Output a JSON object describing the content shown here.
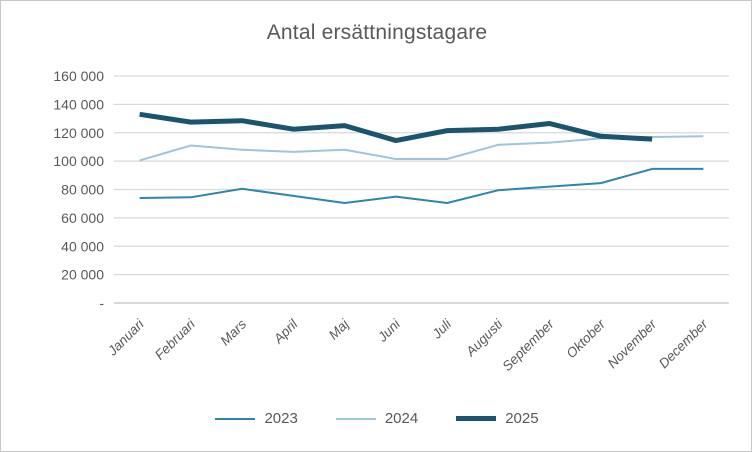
{
  "chart_data": {
    "type": "line",
    "title": "Antal ersättningstagare",
    "categories": [
      "Januari",
      "Februari",
      "Mars",
      "April",
      "Maj",
      "Juni",
      "Juli",
      "Augusti",
      "September",
      "Oktober",
      "November",
      "December"
    ],
    "series": [
      {
        "name": "2023",
        "color": "#2E86AE",
        "width": 2,
        "values": [
          74000,
          74500,
          80500,
          75500,
          70500,
          75000,
          70500,
          79500,
          82000,
          84500,
          94500,
          94500
        ]
      },
      {
        "name": "2024",
        "color": "#9DC5DC",
        "width": 2,
        "values": [
          100500,
          111000,
          108000,
          106500,
          108000,
          101500,
          101500,
          111500,
          113000,
          116000,
          117000,
          117500
        ]
      },
      {
        "name": "2025",
        "color": "#1B546E",
        "width": 5,
        "values": [
          133000,
          127500,
          128500,
          122500,
          125000,
          114500,
          121500,
          122500,
          126500,
          117500,
          115500
        ]
      }
    ],
    "y_axis": {
      "min": 0,
      "max": 160000,
      "step": 20000,
      "ticks": [
        {
          "value": 160000,
          "label": "160 000"
        },
        {
          "value": 140000,
          "label": "140 000"
        },
        {
          "value": 120000,
          "label": "120 000"
        },
        {
          "value": 100000,
          "label": "100 000"
        },
        {
          "value": 80000,
          "label": "80 000"
        },
        {
          "value": 60000,
          "label": "60 000"
        },
        {
          "value": 40000,
          "label": "40 000"
        },
        {
          "value": 20000,
          "label": "20 000"
        },
        {
          "value": 0,
          "label": "-"
        }
      ]
    },
    "grid": true,
    "legend_position": "bottom",
    "colors": {
      "text": "#595959",
      "gridline": "#D9D9D9",
      "axis_line": "#C0C0C0",
      "background": "#FFFFFF",
      "border": "#C8C8C8"
    }
  }
}
